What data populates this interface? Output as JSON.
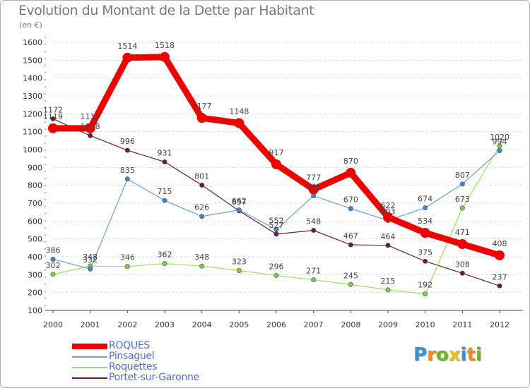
{
  "header": {
    "title": "Evolution du Montant de la Dette par Habitant",
    "subtitle": "(en €)"
  },
  "logo": {
    "text": "Proxiti",
    "letters": [
      {
        "ch": "P",
        "color": "#3b8fd6"
      },
      {
        "ch": "r",
        "color": "#f08a1c"
      },
      {
        "ch": "o",
        "color": "#6bb52a"
      },
      {
        "ch": "x",
        "color": "#e8c21a"
      },
      {
        "ch": "i",
        "color": "#3b8fd6"
      },
      {
        "ch": "t",
        "color": "#f08a1c"
      },
      {
        "ch": "i",
        "color": "#6bb52a"
      }
    ]
  },
  "chart_data": {
    "type": "line",
    "title": "Evolution du Montant de la Dette par Habitant",
    "ylabel": "(en €)",
    "x": [
      2000,
      2001,
      2002,
      2003,
      2004,
      2005,
      2006,
      2007,
      2008,
      2009,
      2010,
      2011,
      2012
    ],
    "ylim": [
      100,
      1600
    ],
    "yticks": [
      100,
      200,
      300,
      400,
      500,
      600,
      700,
      800,
      900,
      1000,
      1100,
      1200,
      1300,
      1400,
      1500,
      1600
    ],
    "grid": "horizontal-dashed",
    "legend_position": "bottom-left",
    "series": [
      {
        "name": "Portet-sur-Garonne",
        "color": "#6b1f22",
        "marker": "#6b1f22",
        "values": [
          1172,
          1078,
          996,
          931,
          801,
          657,
          527,
          548,
          467,
          464,
          375,
          308,
          237
        ]
      },
      {
        "name": "Roquettes",
        "color": "#9be063",
        "marker": "#7ad03a",
        "values": [
          302,
          348,
          346,
          362,
          348,
          323,
          296,
          271,
          245,
          215,
          192,
          673,
          1020
        ]
      },
      {
        "name": "Pinsaguel",
        "color": "#6f9fd0",
        "marker": "#3f86cf",
        "values": [
          386,
          332,
          835,
          715,
          626,
          662,
          552,
          741,
          670,
          603,
          674,
          807,
          994
        ]
      },
      {
        "name": "ROQUES",
        "color": "#ee0000",
        "marker": "#ee0000",
        "thick": true,
        "values": [
          1119,
          1119,
          1514,
          1518,
          1177,
          1148,
          917,
          777,
          870,
          622,
          534,
          471,
          408
        ]
      }
    ]
  }
}
